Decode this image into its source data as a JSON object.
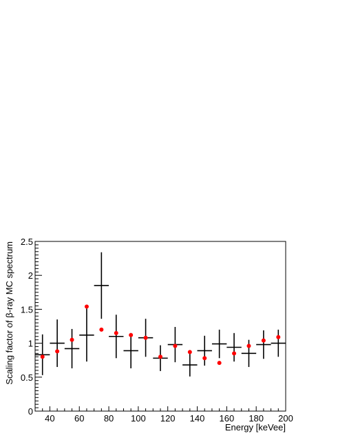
{
  "chart_data": {
    "type": "scatter",
    "title": "",
    "xlabel": "Energy [keVee]",
    "ylabel": "Scaling factor of β-ray MC spectrum",
    "xlim": [
      30,
      200
    ],
    "ylim": [
      0,
      2.5
    ],
    "xticks": [
      40,
      60,
      80,
      100,
      120,
      140,
      160,
      180,
      200
    ],
    "xtick_labels": [
      "40",
      "60",
      "80",
      "100",
      "120",
      "140",
      "160",
      "180",
      "200"
    ],
    "yticks": [
      0,
      0.5,
      1,
      1.5,
      2,
      2.5
    ],
    "ytick_labels": [
      "0",
      "0.5",
      "1",
      "1.5",
      "2",
      "2.5"
    ],
    "grid": false,
    "series": [
      {
        "style": "crosses-with-error-bars",
        "color": "#000000",
        "x": [
          35,
          45,
          55,
          65,
          75,
          85,
          95,
          105,
          115,
          125,
          135,
          145,
          155,
          165,
          175,
          185,
          195
        ],
        "x_halfwidth": 5,
        "y": [
          0.83,
          1.0,
          0.92,
          1.12,
          1.85,
          1.1,
          0.89,
          1.08,
          0.78,
          0.98,
          0.68,
          0.89,
          0.99,
          0.94,
          0.85,
          0.98,
          1.0
        ],
        "y_err": [
          0.3,
          0.35,
          0.29,
          0.39,
          0.49,
          0.32,
          0.26,
          0.28,
          0.19,
          0.26,
          0.17,
          0.22,
          0.21,
          0.21,
          0.2,
          0.21,
          0.2
        ]
      },
      {
        "style": "markers",
        "color": "#ff0000",
        "x": [
          35,
          45,
          55,
          65,
          75,
          85,
          95,
          105,
          115,
          125,
          135,
          145,
          155,
          165,
          175,
          185,
          195
        ],
        "y": [
          0.8,
          0.88,
          1.05,
          1.54,
          1.2,
          1.15,
          1.12,
          1.08,
          0.8,
          0.96,
          0.87,
          0.78,
          0.71,
          0.85,
          0.96,
          1.04,
          1.09
        ]
      }
    ]
  }
}
